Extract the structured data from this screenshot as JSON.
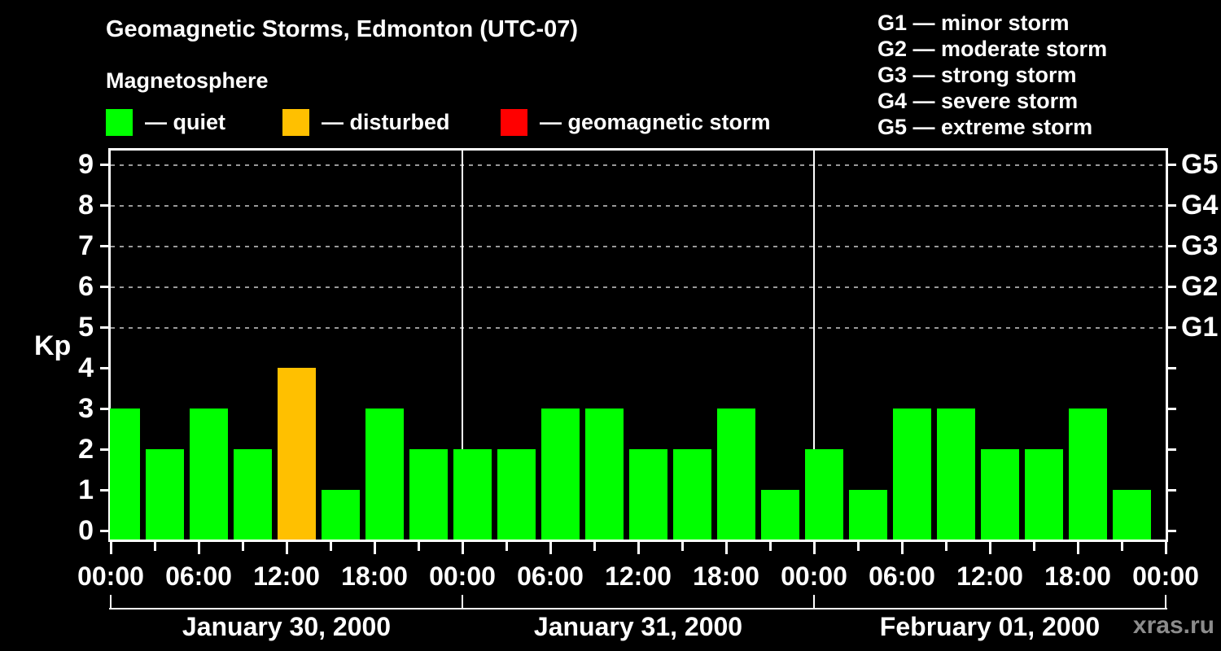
{
  "title": "Geomagnetic Storms, Edmonton (UTC-07)",
  "subtitle": "Magnetosphere",
  "kp_axis_label": "Kp",
  "watermark": "xras.ru",
  "legend": {
    "items": [
      {
        "label": "— quiet",
        "color": "#00ff00",
        "meaning": "quiet"
      },
      {
        "label": "— disturbed",
        "color": "#ffc000",
        "meaning": "disturbed"
      },
      {
        "label": "— geomagnetic storm",
        "color": "#ff0000",
        "meaning": "geomagnetic storm"
      }
    ]
  },
  "storm_scale": {
    "items": [
      {
        "label": "G1 — minor storm"
      },
      {
        "label": "G2 — moderate storm"
      },
      {
        "label": "G3 — strong storm"
      },
      {
        "label": "G4 — severe storm"
      },
      {
        "label": "G5 — extreme storm"
      }
    ]
  },
  "chart_data": {
    "type": "bar",
    "title": "Geomagnetic Storms, Edmonton (UTC-07)",
    "ylabel": "Kp",
    "ylim": [
      0,
      9
    ],
    "yticks": [
      0,
      1,
      2,
      3,
      4,
      5,
      6,
      7,
      8,
      9
    ],
    "grid": {
      "style": "dashed horizontal",
      "at_kp": [
        5,
        6,
        7,
        8,
        9
      ]
    },
    "right_axis_labels": [
      {
        "kp": 5,
        "label": "G1"
      },
      {
        "kp": 6,
        "label": "G2"
      },
      {
        "kp": 7,
        "label": "G3"
      },
      {
        "kp": 8,
        "label": "G4"
      },
      {
        "kp": 9,
        "label": "G5"
      }
    ],
    "interval_hours": 3,
    "total_hours": 72,
    "x_tick_labels_every_6h": [
      "00:00",
      "06:00",
      "12:00",
      "18:00",
      "00:00",
      "06:00",
      "12:00",
      "18:00",
      "00:00",
      "06:00",
      "12:00",
      "18:00",
      "00:00"
    ],
    "days": [
      {
        "date": "January 30, 2000",
        "kp": [
          3,
          2,
          3,
          2,
          4,
          1,
          3,
          2
        ]
      },
      {
        "date": "January 31, 2000",
        "kp": [
          2,
          2,
          3,
          3,
          2,
          2,
          3,
          1
        ]
      },
      {
        "date": "February 01, 2000",
        "kp": [
          2,
          1,
          3,
          3,
          2,
          2,
          3,
          1
        ]
      }
    ],
    "color_rules": {
      "quiet_kp_max": 3,
      "disturbed_kp": 4,
      "storm_kp_min": 5
    },
    "colors": {
      "quiet": "#00ff00",
      "disturbed": "#ffc000",
      "storm": "#ff0000",
      "axis": "#ffffff",
      "gridline": "#999999",
      "background": "#000000",
      "watermark": "#8c8c8c"
    },
    "legend_position": "top"
  }
}
